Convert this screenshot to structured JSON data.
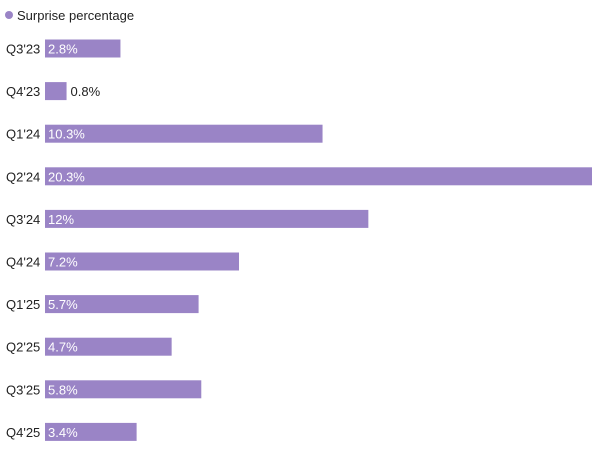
{
  "legend": {
    "label": "Surprise percentage"
  },
  "colors": {
    "bar": "#9A84C6",
    "text": "#222222",
    "label_inside": "#ffffff"
  },
  "chart_data": {
    "type": "bar",
    "orientation": "horizontal",
    "categories": [
      "Q3'23",
      "Q4'23",
      "Q1'24",
      "Q2'24",
      "Q3'24",
      "Q4'24",
      "Q1'25",
      "Q2'25",
      "Q3'25",
      "Q4'25"
    ],
    "series": [
      {
        "name": "Surprise percentage",
        "values": [
          2.8,
          0.8,
          10.3,
          20.3,
          12,
          7.2,
          5.7,
          4.7,
          5.8,
          3.4
        ],
        "labels": [
          "2.8%",
          "0.8%",
          "10.3%",
          "20.3%",
          "12%",
          "7.2%",
          "5.7%",
          "4.7%",
          "5.8%",
          "3.4%"
        ]
      }
    ],
    "xlim": [
      0,
      20.3
    ],
    "grid": false,
    "legend_position": "top-left"
  }
}
